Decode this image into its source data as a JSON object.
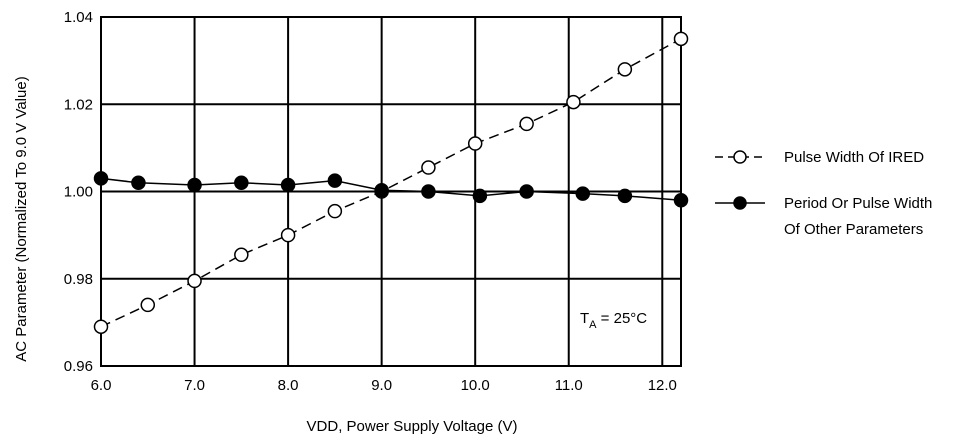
{
  "chart_data": {
    "type": "line",
    "xlabel": "VDD, Power Supply Voltage (V)",
    "ylabel": "AC Parameter (Normalized To 9.0 V Value)",
    "xlim": [
      6.0,
      12.2
    ],
    "ylim": [
      0.96,
      1.04
    ],
    "x_ticks": [
      "6.0",
      "7.0",
      "8.0",
      "9.0",
      "10.0",
      "11.0",
      "12.0"
    ],
    "y_ticks": [
      "0.96",
      "0.98",
      "1.00",
      "1.02",
      "1.04"
    ],
    "grid": true,
    "legend_position": "right",
    "annotation": {
      "base": "T",
      "subscript": "A",
      "text": " = 25°C"
    },
    "series": [
      {
        "name": "Pulse Width Of IRED",
        "marker": "open-circle",
        "line_style": "dashed",
        "x": [
          6.0,
          6.5,
          7.0,
          7.5,
          8.0,
          8.5,
          9.0,
          9.5,
          10.0,
          10.55,
          11.05,
          11.6,
          12.2
        ],
        "y": [
          0.969,
          0.974,
          0.9795,
          0.9855,
          0.99,
          0.9955,
          1.0,
          1.0055,
          1.011,
          1.0155,
          1.0205,
          1.028,
          1.035
        ]
      },
      {
        "name": "Period Or Pulse Width\nOf Other Parameters",
        "name_lines": [
          "Period Or Pulse Width",
          "Of Other Parameters"
        ],
        "marker": "filled-circle",
        "line_style": "solid",
        "x": [
          6.0,
          6.4,
          7.0,
          7.5,
          8.0,
          8.5,
          9.0,
          9.5,
          10.05,
          10.55,
          11.15,
          11.6,
          12.2
        ],
        "y": [
          1.003,
          1.002,
          1.0015,
          1.002,
          1.0015,
          1.0025,
          1.0003,
          1.0,
          0.999,
          1.0,
          0.9995,
          0.999,
          0.998
        ]
      }
    ]
  }
}
